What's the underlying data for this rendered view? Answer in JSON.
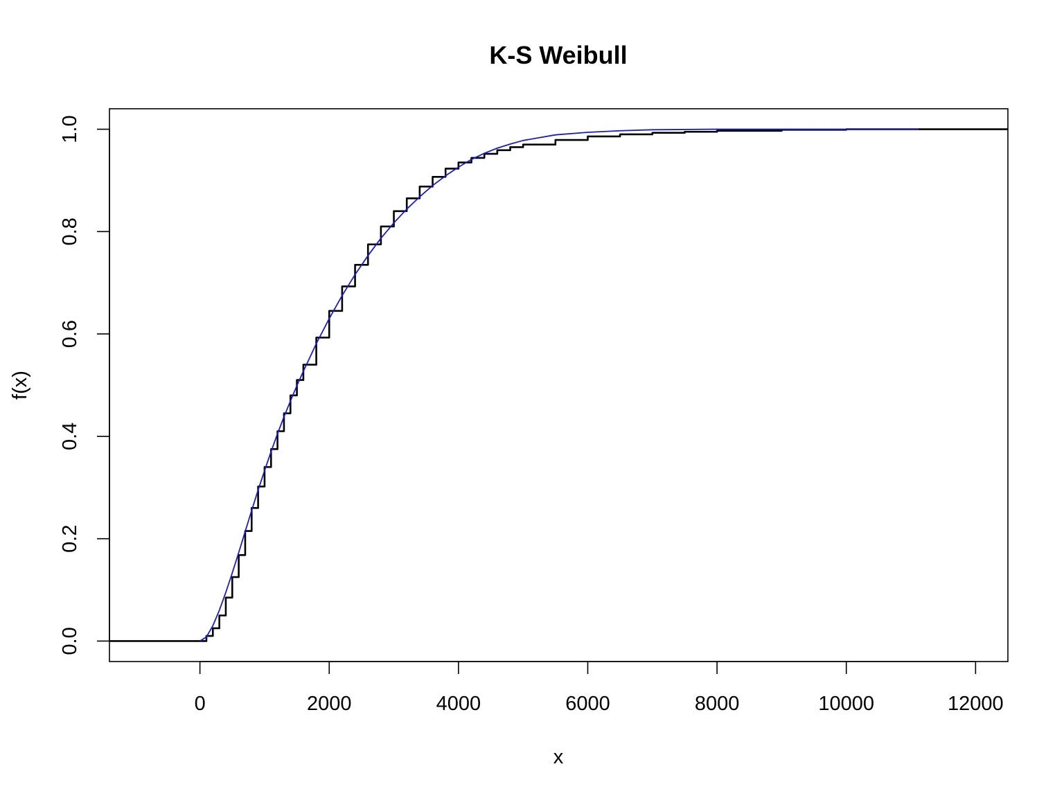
{
  "chart_data": {
    "type": "line",
    "title": "K-S Weibull",
    "xlabel": "x",
    "ylabel": "f(x)",
    "xlim": [
      -1400,
      12500
    ],
    "ylim": [
      -0.04,
      1.04
    ],
    "x_ticks": [
      0,
      2000,
      4000,
      6000,
      8000,
      10000,
      12000
    ],
    "x_tick_labels": [
      "0",
      "2000",
      "4000",
      "6000",
      "8000",
      "10000",
      "12000"
    ],
    "y_ticks": [
      0.0,
      0.2,
      0.4,
      0.6,
      0.8,
      1.0
    ],
    "y_tick_labels": [
      "0.0",
      "0.2",
      "0.4",
      "0.6",
      "0.8",
      "1.0"
    ],
    "grid": false,
    "legend": "none",
    "series": [
      {
        "color": "#000000",
        "style": "step",
        "x": [
          -1400,
          0,
          100,
          200,
          300,
          400,
          500,
          600,
          700,
          800,
          900,
          1000,
          1100,
          1200,
          1300,
          1400,
          1500,
          1600,
          1800,
          2000,
          2200,
          2400,
          2600,
          2800,
          3000,
          3200,
          3400,
          3600,
          3800,
          4000,
          4200,
          4400,
          4600,
          4800,
          5000,
          5500,
          6000,
          6500,
          7000,
          7500,
          8000,
          9000,
          10000,
          11100,
          12500
        ],
        "y": [
          0.0,
          0.0,
          0.01,
          0.025,
          0.05,
          0.085,
          0.125,
          0.168,
          0.215,
          0.26,
          0.302,
          0.34,
          0.375,
          0.41,
          0.445,
          0.48,
          0.51,
          0.54,
          0.593,
          0.645,
          0.693,
          0.735,
          0.775,
          0.81,
          0.84,
          0.865,
          0.888,
          0.907,
          0.923,
          0.935,
          0.944,
          0.952,
          0.959,
          0.965,
          0.97,
          0.979,
          0.986,
          0.99,
          0.993,
          0.995,
          0.997,
          0.999,
          1.0,
          1.0,
          1.0
        ]
      },
      {
        "color": "#1a1acc",
        "style": "line",
        "x": [
          0,
          100,
          200,
          300,
          400,
          500,
          600,
          700,
          800,
          900,
          1000,
          1100,
          1200,
          1300,
          1400,
          1500,
          1600,
          1800,
          2000,
          2200,
          2400,
          2600,
          2800,
          3000,
          3200,
          3400,
          3600,
          3800,
          4000,
          4200,
          4400,
          4600,
          4800,
          5000,
          5500,
          6000,
          6500,
          7000,
          7500,
          8000,
          9000,
          10000,
          11120
        ],
        "y": [
          0.0,
          0.008,
          0.03,
          0.06,
          0.095,
          0.133,
          0.173,
          0.214,
          0.255,
          0.295,
          0.333,
          0.37,
          0.405,
          0.438,
          0.469,
          0.499,
          0.527,
          0.581,
          0.63,
          0.675,
          0.716,
          0.753,
          0.787,
          0.817,
          0.844,
          0.868,
          0.89,
          0.909,
          0.926,
          0.941,
          0.953,
          0.963,
          0.971,
          0.978,
          0.989,
          0.994,
          0.997,
          0.999,
          0.9995,
          1.0,
          1.0,
          1.0,
          1.0
        ]
      }
    ]
  }
}
